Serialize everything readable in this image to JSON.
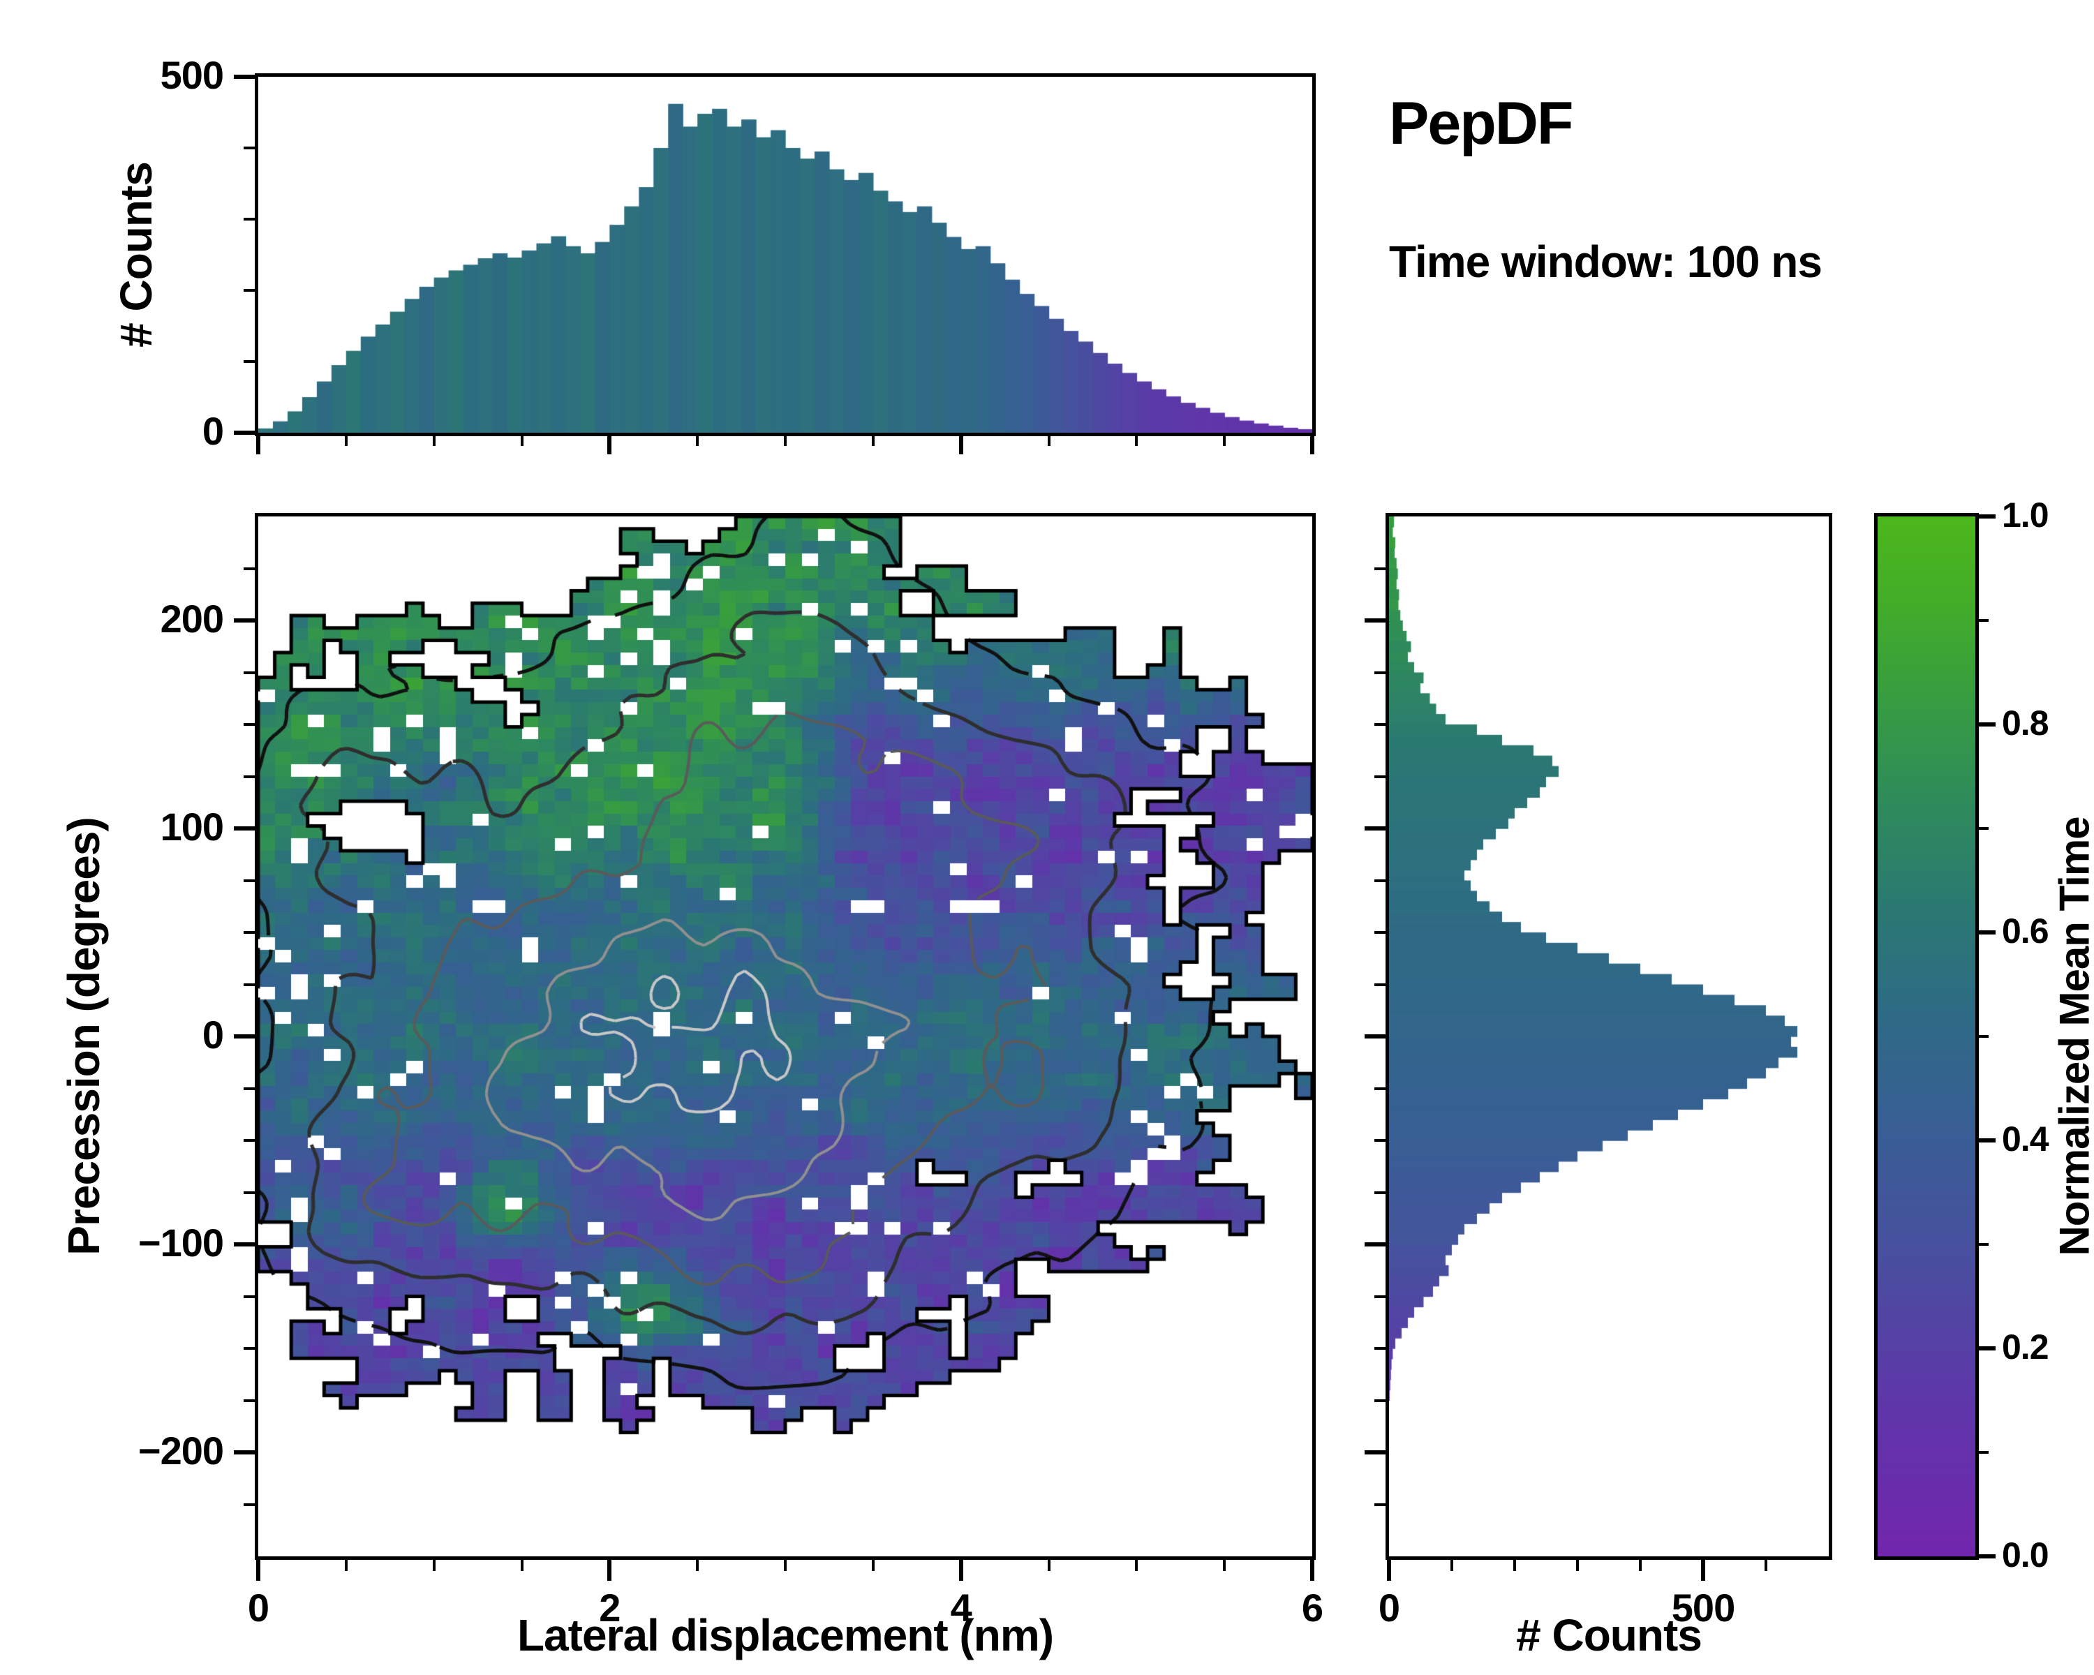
{
  "figure": {
    "title": "PepDF",
    "subtitle": "Time window: 100 ns",
    "background": "#ffffff"
  },
  "colormap": {
    "name": "purple-blue-green",
    "stops": [
      [
        0,
        "#7226ad"
      ],
      [
        0.14,
        "#5f35a9"
      ],
      [
        0.3,
        "#47519e"
      ],
      [
        0.42,
        "#375f93"
      ],
      [
        0.52,
        "#2e6a85"
      ],
      [
        0.62,
        "#2b7873"
      ],
      [
        0.72,
        "#2e8a5c"
      ],
      [
        0.82,
        "#369c42"
      ],
      [
        0.92,
        "#43ad28"
      ],
      [
        1,
        "#4cb71c"
      ]
    ]
  },
  "chart_data": [
    {
      "id": "top_histogram",
      "type": "bar",
      "orientation": "vertical",
      "bins": 72,
      "xlim": [
        0,
        6
      ],
      "ylim": [
        0,
        500
      ],
      "ylabel": "# Counts",
      "yticks": [
        0,
        500
      ],
      "ytick_labels": [
        "0",
        "500"
      ],
      "values": [
        6,
        16,
        30,
        50,
        72,
        95,
        115,
        135,
        152,
        170,
        188,
        205,
        218,
        228,
        236,
        245,
        252,
        246,
        256,
        266,
        276,
        262,
        252,
        268,
        292,
        318,
        345,
        400,
        462,
        430,
        448,
        455,
        430,
        440,
        415,
        425,
        400,
        385,
        395,
        370,
        355,
        365,
        340,
        325,
        310,
        318,
        295,
        275,
        258,
        262,
        238,
        215,
        195,
        178,
        160,
        143,
        128,
        112,
        97,
        84,
        72,
        61,
        51,
        42,
        35,
        28,
        22,
        17,
        13,
        10,
        7,
        5
      ],
      "norm_mean_time": [
        0.58,
        0.55,
        0.6,
        0.56,
        0.53,
        0.57,
        0.61,
        0.54,
        0.56,
        0.59,
        0.55,
        0.52,
        0.57,
        0.6,
        0.54,
        0.56,
        0.53,
        0.58,
        0.55,
        0.57,
        0.54,
        0.56,
        0.59,
        0.53,
        0.55,
        0.57,
        0.54,
        0.56,
        0.52,
        0.55,
        0.58,
        0.54,
        0.56,
        0.53,
        0.57,
        0.55,
        0.54,
        0.56,
        0.53,
        0.55,
        0.52,
        0.54,
        0.56,
        0.53,
        0.55,
        0.51,
        0.53,
        0.5,
        0.52,
        0.49,
        0.47,
        0.44,
        0.41,
        0.38,
        0.35,
        0.31,
        0.28,
        0.25,
        0.22,
        0.2,
        0.18,
        0.17,
        0.16,
        0.15,
        0.14,
        0.14,
        0.13,
        0.13,
        0.12,
        0.12,
        0.11,
        0.11
      ]
    },
    {
      "id": "main_heatmap",
      "type": "heatmap",
      "xlabel": "Lateral displacement (nm)",
      "ylabel": "Precession (degrees)",
      "color_field": "normalized_mean_time",
      "xlim": [
        0,
        6
      ],
      "ylim": [
        -250,
        250
      ],
      "xticks": [
        0,
        2,
        4,
        6
      ],
      "xtick_labels": [
        "0",
        "2",
        "4",
        "6"
      ],
      "yticks": [
        -200,
        -100,
        0,
        100,
        200
      ],
      "ytick_labels": [
        "−200",
        "−100",
        "0",
        "100",
        "200"
      ],
      "grid": {
        "nx": 64,
        "ny": 84
      },
      "seed": 9,
      "occupancy": {
        "threshold": 0.16,
        "noise_amp": 0.95,
        "noise_scale": 2.2,
        "hole_prob_low": 0.055,
        "hole_prob_high": 0.02,
        "low_density_cut": 0.55
      },
      "blobs": [
        {
          "cx": 2.4,
          "cy": -10,
          "sx": 1.45,
          "sy": 78,
          "w": 1.0
        },
        {
          "cx": 2.6,
          "cy": 152,
          "sx": 0.95,
          "sy": 55,
          "w": 0.45
        },
        {
          "cx": 4.35,
          "cy": 112,
          "sx": 0.95,
          "sy": 48,
          "w": 0.45
        },
        {
          "cx": 0.7,
          "cy": -90,
          "sx": 0.55,
          "sy": 45,
          "w": 0.35
        },
        {
          "cx": 2.9,
          "cy": -118,
          "sx": 0.8,
          "sy": 40,
          "w": 0.3
        },
        {
          "cx": 0.5,
          "cy": 115,
          "sx": 0.6,
          "sy": 50,
          "w": 0.4
        },
        {
          "cx": 4.7,
          "cy": -15,
          "sx": 0.7,
          "sy": 55,
          "w": 0.3
        },
        {
          "cx": 3.2,
          "cy": 228,
          "sx": 0.5,
          "sy": 40,
          "w": 0.25
        }
      ],
      "forced_holes": [
        {
          "cx": 0.65,
          "cy": 100,
          "rx": 0.28,
          "ry": 12
        }
      ],
      "meantime": {
        "base": 0.24,
        "steps": [
          {
            "amp": 0.28,
            "y0": -85,
            "w": 70
          },
          {
            "amp": 0.2,
            "y0": 55,
            "w": 60
          }
        ],
        "purple_arm": {
          "amp": 0.48,
          "x0": 3.0,
          "wx": 0.5,
          "cy": 115,
          "sy": 45
        },
        "green_patches": [
          {
            "cx": 1.45,
            "cy": -80,
            "sx": 0.22,
            "sy": 14,
            "amp": 0.5
          },
          {
            "cx": 2.2,
            "cy": -132,
            "sx": 0.25,
            "sy": 15,
            "amp": 0.55
          },
          {
            "cx": 0.35,
            "cy": -85,
            "sx": 0.2,
            "sy": 12,
            "amp": 0.3
          }
        ],
        "teal_patches": [
          {
            "cx": 0.9,
            "cy": 112,
            "sx": 0.35,
            "sy": 22,
            "amp": 0.2
          }
        ],
        "noise_smooth": 0.1,
        "noise_cell": 0.07
      },
      "contours": {
        "levels": [
          0.3,
          0.5,
          0.68,
          0.84,
          0.97
        ],
        "colors": [
          "#111111",
          "#2e2e2e",
          "#5a5a5a",
          "#909090",
          "#c8c8c8"
        ],
        "widths": [
          5,
          5,
          4,
          4,
          4
        ],
        "wiggle": 0.06
      }
    },
    {
      "id": "right_histogram",
      "type": "bar",
      "orientation": "horizontal",
      "bins": 100,
      "xlim": [
        0,
        700
      ],
      "ylim": [
        -250,
        250
      ],
      "xlabel": "# Counts",
      "xticks": [
        0,
        500
      ],
      "xtick_labels": [
        "0",
        "500"
      ],
      "bin_y_start": 250,
      "bin_y_step": -5,
      "values": [
        8,
        6,
        10,
        9,
        12,
        14,
        12,
        16,
        15,
        18,
        22,
        28,
        35,
        30,
        40,
        55,
        50,
        65,
        75,
        90,
        140,
        180,
        230,
        260,
        270,
        250,
        240,
        220,
        200,
        190,
        170,
        150,
        140,
        130,
        120,
        130,
        140,
        160,
        180,
        210,
        250,
        300,
        350,
        400,
        450,
        500,
        550,
        600,
        630,
        650,
        640,
        650,
        620,
        600,
        570,
        540,
        500,
        460,
        420,
        380,
        340,
        300,
        270,
        240,
        210,
        180,
        160,
        140,
        120,
        110,
        100,
        90,
        95,
        80,
        70,
        55,
        40,
        30,
        20,
        10,
        6,
        4,
        3,
        2,
        1,
        0,
        0,
        0,
        0,
        0,
        0,
        0,
        0,
        0,
        0,
        0,
        0,
        0,
        0,
        0
      ],
      "norm_mean_time": [
        0.82,
        0.8,
        0.84,
        0.79,
        0.81,
        0.78,
        0.8,
        0.77,
        0.79,
        0.76,
        0.75,
        0.74,
        0.72,
        0.73,
        0.71,
        0.7,
        0.69,
        0.68,
        0.67,
        0.66,
        0.64,
        0.63,
        0.62,
        0.62,
        0.61,
        0.6,
        0.6,
        0.59,
        0.59,
        0.58,
        0.57,
        0.57,
        0.56,
        0.56,
        0.55,
        0.55,
        0.54,
        0.54,
        0.53,
        0.53,
        0.52,
        0.52,
        0.51,
        0.51,
        0.5,
        0.5,
        0.49,
        0.49,
        0.48,
        0.48,
        0.47,
        0.47,
        0.46,
        0.45,
        0.45,
        0.44,
        0.44,
        0.43,
        0.42,
        0.42,
        0.41,
        0.4,
        0.39,
        0.38,
        0.37,
        0.36,
        0.35,
        0.34,
        0.34,
        0.33,
        0.31,
        0.3,
        0.29,
        0.27,
        0.26,
        0.25,
        0.23,
        0.22,
        0.21,
        0.2,
        0.18,
        0.16,
        0.15,
        0.14,
        0.13,
        0.12,
        0.12,
        0.12,
        0.12,
        0.12,
        0.12,
        0.12,
        0.12,
        0.12,
        0.12,
        0.12,
        0.12,
        0.12,
        0.12,
        0.12
      ]
    },
    {
      "id": "colorbar",
      "type": "colorbar",
      "label": "Normalized Mean Time",
      "lim": [
        0,
        1
      ],
      "ticks": [
        0,
        0.2,
        0.4,
        0.6,
        0.8,
        1
      ],
      "tick_labels": [
        "0.0",
        "0.2",
        "0.4",
        "0.6",
        "0.8",
        "1.0"
      ]
    }
  ]
}
